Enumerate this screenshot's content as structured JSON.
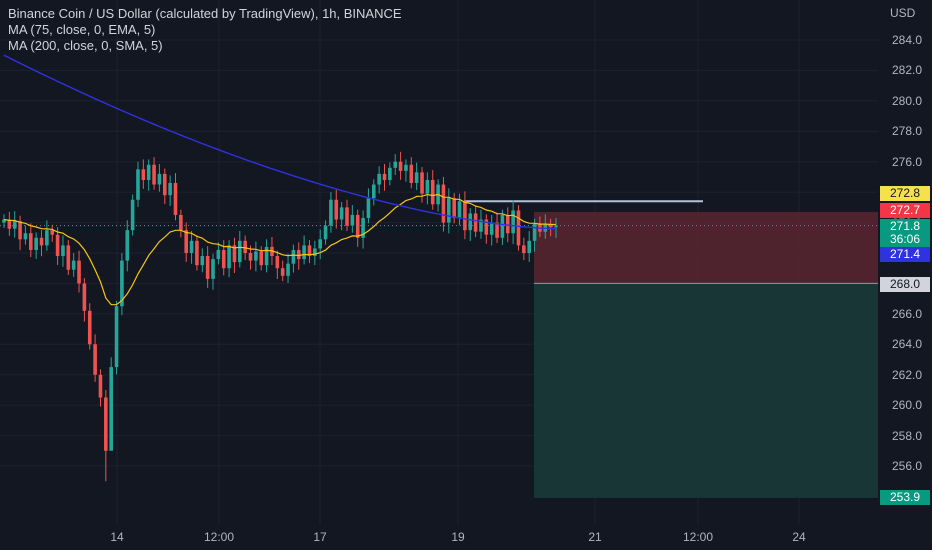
{
  "legend": {
    "title": "Binance Coin / US Dollar (calculated by TradingView), 1h, BINANCE",
    "ma1": "MA (75, close, 0, EMA, 5)",
    "ma2": "MA (200, close, 0, SMA, 5)"
  },
  "currency": "USD",
  "price_ticks": [
    "284.0",
    "282.0",
    "280.0",
    "278.0",
    "276.0",
    "274.0",
    "272.0",
    "270.0",
    "268.0",
    "266.0",
    "264.0",
    "262.0",
    "260.0",
    "258.0",
    "256.0"
  ],
  "time_ticks": [
    "14",
    "12:00",
    "17",
    "19",
    "21",
    "12:00",
    "24"
  ],
  "price_tags": {
    "ma75": "272.8",
    "stop": "272.7",
    "last_price": "271.8",
    "countdown": "36:06",
    "ma200": "271.4",
    "entry": "268.0",
    "target": "253.9"
  },
  "colors": {
    "background": "#131722",
    "up": "#26a69a",
    "down": "#ef5350",
    "ma75": "#f5c518",
    "ma200": "#2f32e0",
    "stop_zone": "#5a2630",
    "target_zone": "#183a37"
  },
  "chart_data": {
    "type": "candlestick",
    "symbol": "Binance Coin / US Dollar",
    "timeframe": "1h",
    "ylim": [
      253.5,
      285.5
    ],
    "short_position": {
      "entry": 268.0,
      "stop": 272.7,
      "target": 253.9
    },
    "closes": [
      272.2,
      271.6,
      272.1,
      270.9,
      271.3,
      270.2,
      271.0,
      270.5,
      271.5,
      271.2,
      269.8,
      270.5,
      268.9,
      269.5,
      268.0,
      266.2,
      264.0,
      262.0,
      260.5,
      257.0,
      262.5,
      266.5,
      269.5,
      271.5,
      273.5,
      275.5,
      274.8,
      275.8,
      274.5,
      275.2,
      273.8,
      274.6,
      272.5,
      271.5,
      270.0,
      270.8,
      269.2,
      269.8,
      268.3,
      269.6,
      270.2,
      269.0,
      270.5,
      269.4,
      270.8,
      270.0,
      269.5,
      270.1,
      269.2,
      270.4,
      269.8,
      269.0,
      268.5,
      269.3,
      270.2,
      269.6,
      270.5,
      269.8,
      270.3,
      270.9,
      271.8,
      273.5,
      272.2,
      273.0,
      271.8,
      272.5,
      271.0,
      272.3,
      273.6,
      274.5,
      275.2,
      274.8,
      275.6,
      276.0,
      275.4,
      275.8,
      274.6,
      275.3,
      273.9,
      274.8,
      273.2,
      274.5,
      272.0,
      273.6,
      272.3,
      273.4,
      271.5,
      272.6,
      271.4,
      272.2,
      271.2,
      272.0,
      271.0,
      272.5,
      271.3,
      272.8,
      270.5,
      270.0,
      270.8,
      271.9,
      271.4,
      271.9,
      271.7,
      271.8
    ]
  }
}
